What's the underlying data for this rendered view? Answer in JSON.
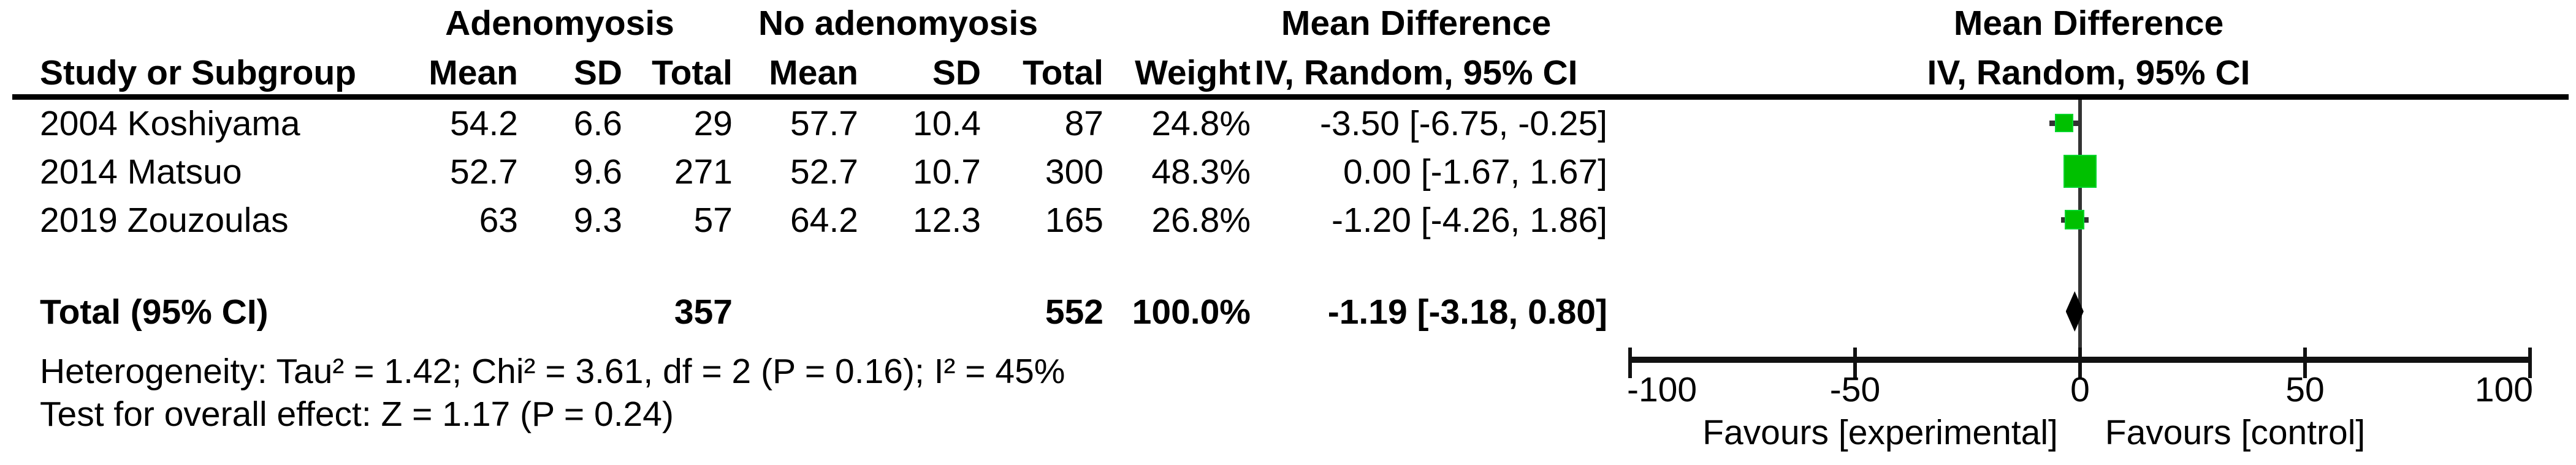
{
  "table": {
    "header_row1": {
      "group1": "Adenomyosis",
      "group2": "No adenomyosis",
      "md": "Mean Difference"
    },
    "header_row2": {
      "study": "Study or Subgroup",
      "mean1": "Mean",
      "sd1": "SD",
      "total1": "Total",
      "mean2": "Mean",
      "sd2": "SD",
      "total2": "Total",
      "weight": "Weight",
      "ci": "IV, Random, 95% CI"
    },
    "plot_header": {
      "title": "Mean Difference",
      "subtitle": "IV, Random, 95% CI"
    },
    "studies": [
      {
        "label": "2004 Koshiyama",
        "mean1": "54.2",
        "sd1": "6.6",
        "total1": "29",
        "mean2": "57.7",
        "sd2": "10.4",
        "total2": "87",
        "weight": "24.8%",
        "ci": "-3.50 [-6.75, -0.25]"
      },
      {
        "label": "2014 Matsuo",
        "mean1": "52.7",
        "sd1": "9.6",
        "total1": "271",
        "mean2": "52.7",
        "sd2": "10.7",
        "total2": "300",
        "weight": "48.3%",
        "ci": "0.00 [-1.67, 1.67]"
      },
      {
        "label": "2019 Zouzoulas",
        "mean1": "63",
        "sd1": "9.3",
        "total1": "57",
        "mean2": "64.2",
        "sd2": "12.3",
        "total2": "165",
        "weight": "26.8%",
        "ci": "-1.20 [-4.26, 1.86]"
      }
    ],
    "total_row": {
      "label": "Total (95% CI)",
      "total1": "357",
      "total2": "552",
      "weight": "100.0%",
      "ci": "-1.19 [-3.18, 0.80]"
    },
    "footnotes": {
      "heterogeneity": "Heterogeneity: Tau² = 1.42; Chi² = 3.61, df = 2 (P = 0.16); I² = 45%",
      "overall_effect": "Test for overall effect: Z = 1.17 (P = 0.24)"
    }
  },
  "axis": {
    "tick_labels": [
      "-100",
      "-50",
      "0",
      "50",
      "100"
    ],
    "favours_left": "Favours [experimental]",
    "favours_right": "Favours [control]"
  },
  "colors": {
    "square_green": "#00c000",
    "diamond_black": "#000000",
    "line_dark": "#333333"
  },
  "chart_data": {
    "type": "scatter",
    "subtype": "forest-plot-mean-difference",
    "title": "Mean Difference — IV, Random, 95% CI",
    "xlim": [
      -100,
      100
    ],
    "x_ticks": [
      -100,
      -50,
      0,
      50,
      100
    ],
    "grid": false,
    "studies": [
      {
        "label": "2004 Koshiyama",
        "mean_experimental": 54.2,
        "sd_experimental": 6.6,
        "total_experimental": 29,
        "mean_control": 57.7,
        "sd_control": 10.4,
        "total_control": 87,
        "weight_pct": 24.8,
        "md": -3.5,
        "ci_low": -6.75,
        "ci_high": -0.25
      },
      {
        "label": "2014 Matsuo",
        "mean_experimental": 52.7,
        "sd_experimental": 9.6,
        "total_experimental": 271,
        "mean_control": 52.7,
        "sd_control": 10.7,
        "total_control": 300,
        "weight_pct": 48.3,
        "md": 0.0,
        "ci_low": -1.67,
        "ci_high": 1.67
      },
      {
        "label": "2019 Zouzoulas",
        "mean_experimental": 63,
        "sd_experimental": 9.3,
        "total_experimental": 57,
        "mean_control": 64.2,
        "sd_control": 12.3,
        "total_control": 165,
        "weight_pct": 26.8,
        "md": -1.2,
        "ci_low": -4.26,
        "ci_high": 1.86
      }
    ],
    "total": {
      "label": "Total (95% CI)",
      "total_experimental": 357,
      "total_control": 552,
      "weight_pct": 100.0,
      "md": -1.19,
      "ci_low": -3.18,
      "ci_high": 0.8
    },
    "heterogeneity": {
      "tau2": 1.42,
      "chi2": 3.61,
      "df": 2,
      "p": 0.16,
      "i2_pct": 45
    },
    "overall_effect": {
      "z": 1.17,
      "p": 0.24
    },
    "favours_left": "Favours [experimental]",
    "favours_right": "Favours [control]"
  }
}
